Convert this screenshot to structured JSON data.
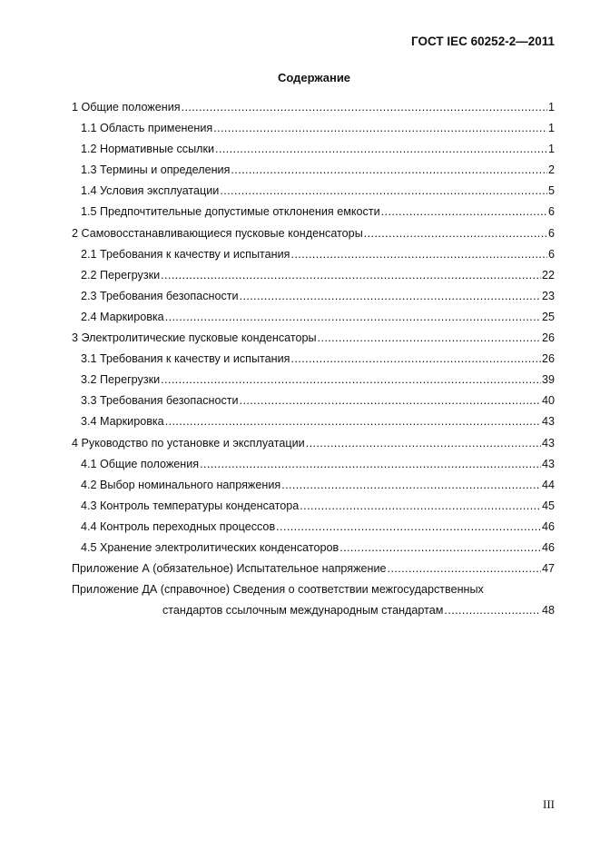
{
  "header": {
    "doc_code": "ГОСТ IEC 60252-2—2011"
  },
  "title": "Содержание",
  "toc": [
    {
      "level": 1,
      "text": "1 Общие положения",
      "page": "1"
    },
    {
      "level": 2,
      "text": "1.1  Область применения",
      "page": "1"
    },
    {
      "level": 2,
      "text": "1.2  Нормативные ссылки",
      "page": "1"
    },
    {
      "level": 2,
      "text": "1.3  Термины и определения",
      "page": "2"
    },
    {
      "level": 2,
      "text": "1.4  Условия эксплуатации",
      "page": "5"
    },
    {
      "level": 2,
      "text": "1.5  Предпочтительные допустимые отклонения емкости",
      "page": "6"
    },
    {
      "level": 1,
      "text": "2 Самовосстанавливающиеся пусковые конденсаторы",
      "page": "6"
    },
    {
      "level": 2,
      "text": "2.1  Требования к качеству и испытания",
      "page": "6"
    },
    {
      "level": 2,
      "text": "2.2  Перегрузки",
      "page": "22"
    },
    {
      "level": 2,
      "text": "2.3  Требования безопасности",
      "page": "23"
    },
    {
      "level": 2,
      "text": "2.4  Маркировка",
      "page": "25"
    },
    {
      "level": 1,
      "text": "3 Электролитические пусковые конденсаторы",
      "page": "26"
    },
    {
      "level": 2,
      "text": "3.1  Требования к качеству и испытания",
      "page": "26"
    },
    {
      "level": 2,
      "text": "3.2  Перегрузки",
      "page": "39"
    },
    {
      "level": 2,
      "text": "3.3  Требования безопасности",
      "page": "40"
    },
    {
      "level": 2,
      "text": "3.4  Маркировка",
      "page": "43"
    },
    {
      "level": 1,
      "text": "4 Руководство по установке и эксплуатации",
      "page": "43"
    },
    {
      "level": 2,
      "text": "4.1  Общие положения",
      "page": "43"
    },
    {
      "level": 2,
      "text": "4.2  Выбор номинального напряжения",
      "page": "44"
    },
    {
      "level": 2,
      "text": "4.3  Контроль температуры конденсатора",
      "page": "45"
    },
    {
      "level": 2,
      "text": "4.4  Контроль переходных процессов",
      "page": "46"
    },
    {
      "level": 2,
      "text": "4.5  Хранение электролитических конденсаторов",
      "page": "46"
    },
    {
      "level": 1,
      "text": "Приложение А (обязательное) Испытательное напряжение",
      "page": "47"
    },
    {
      "level": 1,
      "text": "Приложение ДА (справочное) Сведения о соответствии межгосударственных",
      "page": ""
    },
    {
      "level": 3,
      "text": "стандартов ссылочным международным стандартам",
      "page": "48"
    }
  ],
  "page_number": "III"
}
